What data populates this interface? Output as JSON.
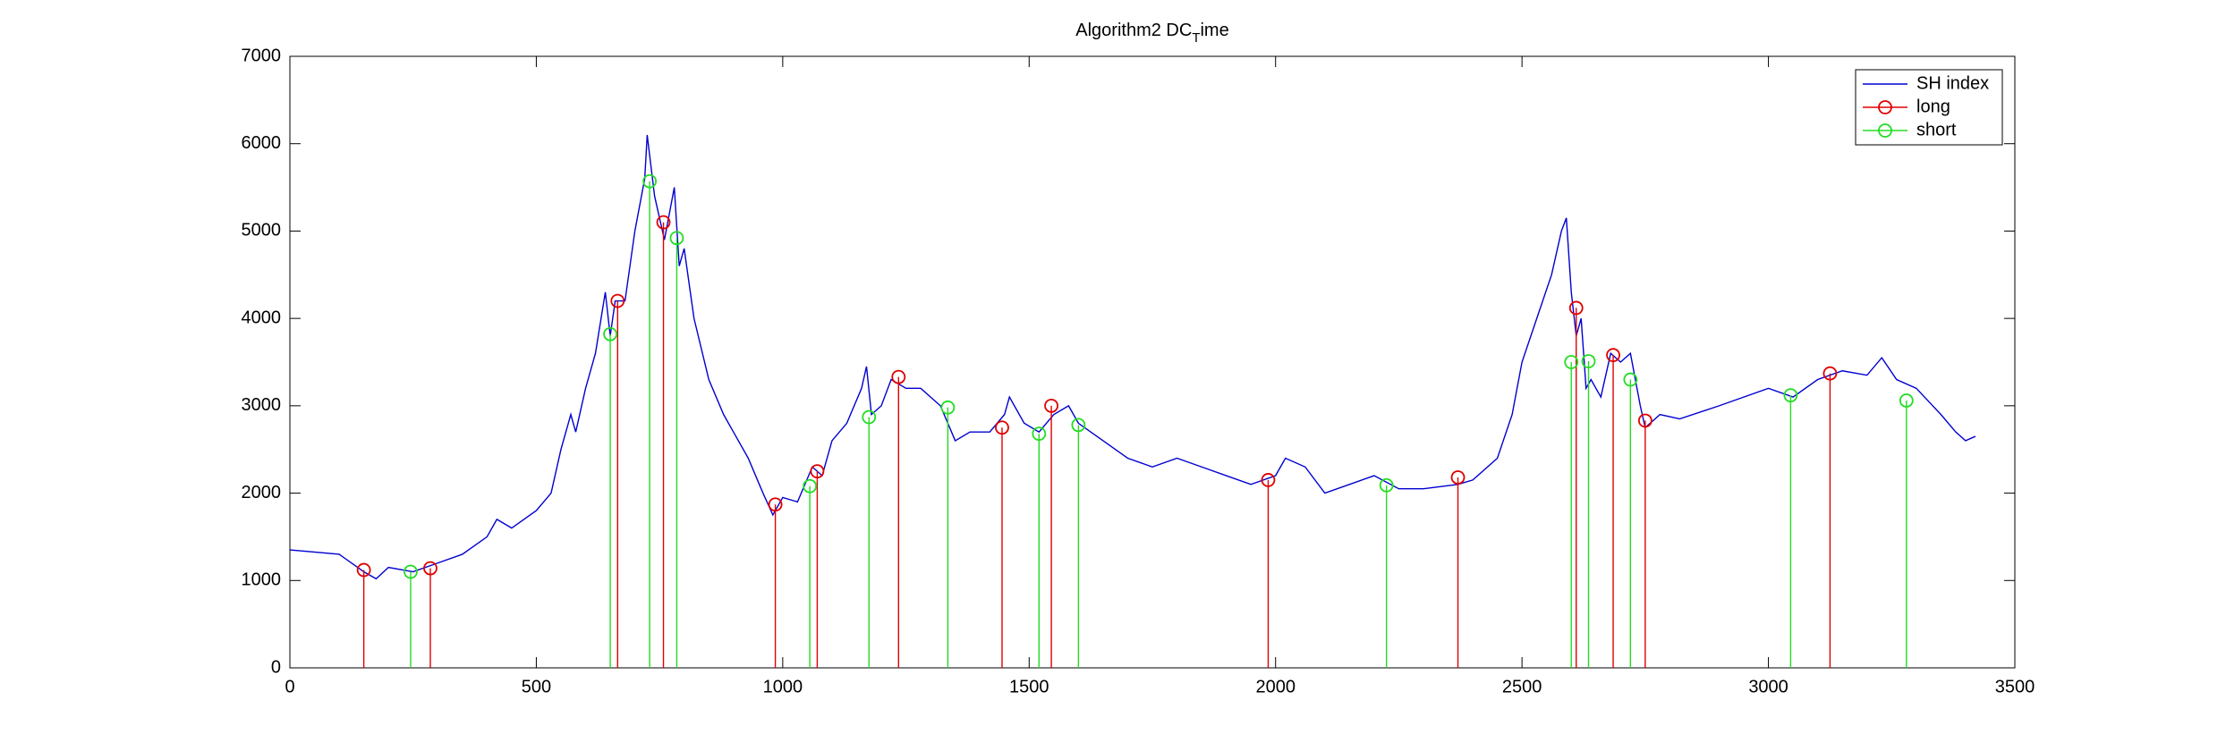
{
  "chart_data": {
    "type": "line",
    "title": [
      "Algorithm2 DC",
      "T",
      "ime"
    ],
    "xlim": [
      0,
      3500
    ],
    "xticks": [
      0,
      500,
      1000,
      1500,
      2000,
      2500,
      3000,
      3500
    ],
    "ylim": [
      0,
      7000
    ],
    "yticks": [
      0,
      1000,
      2000,
      3000,
      4000,
      5000,
      6000,
      7000
    ],
    "legend": "top-right",
    "series": [
      {
        "name": "SH index",
        "type": "line",
        "color": "#0000d0",
        "x": [
          0,
          100,
          150,
          175,
          200,
          250,
          300,
          350,
          400,
          420,
          450,
          500,
          530,
          550,
          570,
          580,
          600,
          620,
          640,
          650,
          660,
          680,
          700,
          720,
          725,
          740,
          760,
          780,
          790,
          800,
          820,
          850,
          880,
          900,
          930,
          960,
          980,
          1000,
          1030,
          1060,
          1080,
          1100,
          1130,
          1160,
          1170,
          1180,
          1200,
          1220,
          1250,
          1280,
          1320,
          1350,
          1380,
          1420,
          1450,
          1460,
          1490,
          1520,
          1550,
          1580,
          1600,
          1650,
          1700,
          1750,
          1800,
          1850,
          1900,
          1950,
          2000,
          2020,
          2060,
          2100,
          2150,
          2200,
          2250,
          2300,
          2370,
          2400,
          2450,
          2480,
          2500,
          2530,
          2560,
          2580,
          2590,
          2600,
          2610,
          2620,
          2630,
          2640,
          2660,
          2680,
          2700,
          2720,
          2740,
          2750,
          2780,
          2820,
          2900,
          3000,
          3050,
          3100,
          3150,
          3200,
          3230,
          3260,
          3300,
          3350,
          3380,
          3400,
          3420
        ],
        "values": [
          1350,
          1300,
          1100,
          1020,
          1150,
          1100,
          1200,
          1300,
          1500,
          1700,
          1600,
          1800,
          2000,
          2500,
          2900,
          2700,
          3200,
          3600,
          4300,
          3800,
          4200,
          4200,
          5000,
          5600,
          6100,
          5400,
          4900,
          5500,
          4600,
          4800,
          4000,
          3300,
          2900,
          2700,
          2400,
          2000,
          1750,
          1950,
          1900,
          2300,
          2200,
          2600,
          2800,
          3200,
          3450,
          2900,
          3000,
          3300,
          3200,
          3200,
          3000,
          2600,
          2700,
          2700,
          2900,
          3100,
          2800,
          2700,
          2900,
          3000,
          2800,
          2600,
          2400,
          2300,
          2400,
          2300,
          2200,
          2100,
          2200,
          2400,
          2300,
          2000,
          2100,
          2200,
          2050,
          2050,
          2100,
          2150,
          2400,
          2900,
          3500,
          4000,
          4500,
          5000,
          5150,
          4300,
          3800,
          4000,
          3200,
          3300,
          3100,
          3600,
          3500,
          3600,
          3000,
          2750,
          2900,
          2850,
          3000,
          3200,
          3100,
          3300,
          3400,
          3350,
          3550,
          3300,
          3200,
          2900,
          2700,
          2600,
          2650
        ]
      },
      {
        "name": "long",
        "type": "stem",
        "color": "#e00000",
        "x": [
          150,
          285,
          665,
          758,
          985,
          1070,
          1235,
          1445,
          1545,
          1985,
          2370,
          2610,
          2685,
          2750,
          3125
        ],
        "values": [
          1120,
          1140,
          4200,
          5100,
          1870,
          2250,
          3330,
          2750,
          3000,
          2150,
          2180,
          4120,
          3580,
          2830,
          3370
        ]
      },
      {
        "name": "short",
        "type": "stem",
        "color": "#22dd22",
        "x": [
          245,
          650,
          730,
          785,
          1055,
          1175,
          1335,
          1520,
          1600,
          2225,
          2600,
          2635,
          2720,
          3045,
          3280
        ],
        "values": [
          1100,
          3820,
          5570,
          4920,
          2080,
          2870,
          2980,
          2680,
          2780,
          2090,
          3500,
          3510,
          3300,
          3120,
          3060
        ]
      }
    ]
  }
}
